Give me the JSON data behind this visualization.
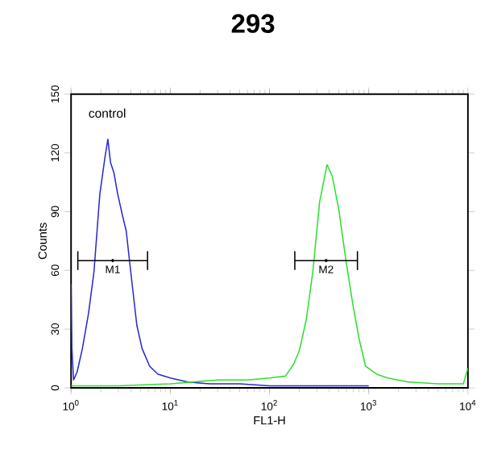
{
  "chart_data": {
    "type": "line",
    "title": "293",
    "xlabel": "FL1-H",
    "ylabel": "Counts",
    "log": "x",
    "grid": false,
    "legend": false,
    "marker": "none",
    "line_style": "solid",
    "xlim": [
      1,
      10000
    ],
    "ylim": [
      0,
      150
    ],
    "xticks": [
      {
        "value": 1,
        "label": "10$^{0}$"
      },
      {
        "value": 10,
        "label": "10$^{1}$"
      },
      {
        "value": 100,
        "label": "10$^{2}$"
      },
      {
        "value": 1000,
        "label": "10$^{3}$"
      },
      {
        "value": 10000,
        "label": "10$^{4}$"
      }
    ],
    "yticks": [
      0,
      30,
      60,
      90,
      120,
      150
    ],
    "series": [
      {
        "name": "control",
        "color": "#2a2ad0",
        "x": [
          1.0,
          1.02,
          1.06,
          1.15,
          1.3,
          1.5,
          1.7,
          1.95,
          2.2,
          2.35,
          2.5,
          2.7,
          2.95,
          3.3,
          3.6,
          4.0,
          4.6,
          5.2,
          6.2,
          7.5,
          10,
          15,
          25,
          50,
          100,
          300,
          1000
        ],
        "values": [
          53,
          20,
          4,
          8,
          20,
          38,
          59,
          99,
          118,
          127,
          115,
          110,
          99,
          88,
          80,
          59,
          32,
          20,
          11,
          7,
          5,
          3,
          2,
          2,
          1,
          1,
          1
        ]
      },
      {
        "color": "#2ee02e",
        "x": [
          1.0,
          3,
          10,
          30,
          60,
          100,
          145,
          175,
          200,
          235,
          273,
          320,
          380,
          430,
          500,
          590,
          690,
          800,
          930,
          1200,
          1550,
          2500,
          5000,
          9000,
          10000
        ],
        "values": [
          1,
          1,
          2,
          4,
          4,
          5,
          6,
          12,
          19,
          35,
          59,
          95,
          114,
          108,
          91,
          65,
          43,
          25,
          11,
          7,
          5,
          3,
          2,
          2,
          10
        ]
      },
      {
        "type": "scatter",
        "color": "#000000",
        "x": [
          2.63,
          372
        ],
        "values": [
          65,
          65
        ],
        "xerrors": [
          [
            1.17,
            5.9
          ],
          [
            180,
            770
          ]
        ]
      }
    ],
    "annotations": [
      {
        "text": "M1",
        "x": 2.63,
        "y": 65
      },
      {
        "text": "M2",
        "x": 372,
        "y": 65
      }
    ]
  }
}
